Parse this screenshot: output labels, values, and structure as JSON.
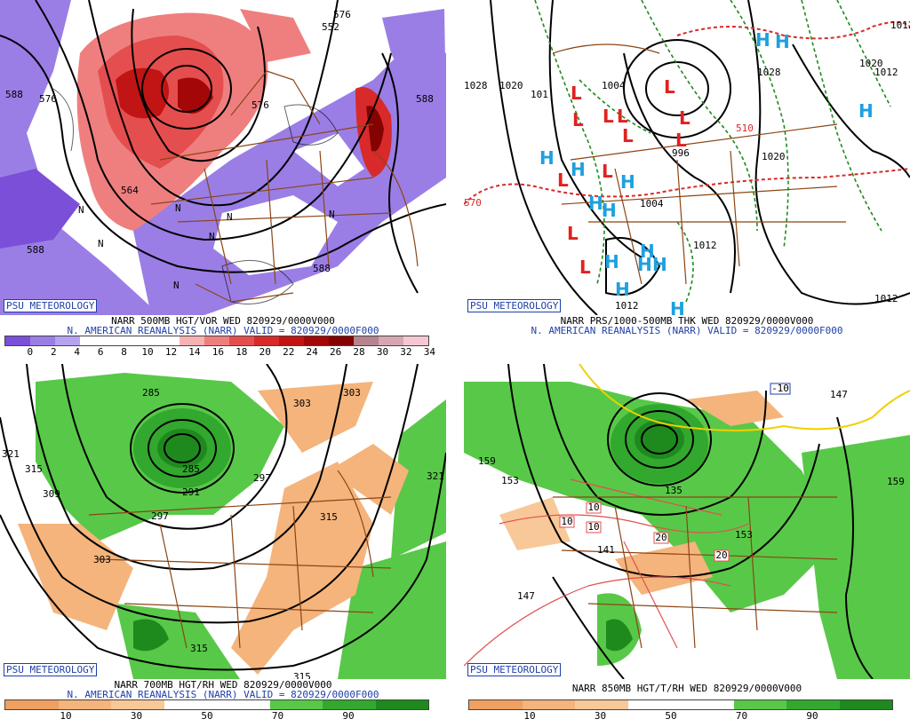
{
  "badge": "PSU METEOROLOGY",
  "subtitle": "N. AMERICAN REANALYSIS (NARR) VALID = 820929/0000F000",
  "panels": [
    {
      "title": "NARR 500MB HGT/VOR WED 820929/0000V000",
      "colorbar": {
        "colors": [
          "#7b4fd8",
          "#9a7ee6",
          "#b6a3ef",
          "#ffffff",
          "#ffffff",
          "#ffffff",
          "#ffffff",
          "#f6b2b2",
          "#ef7f7f",
          "#e54e4e",
          "#d82a2a",
          "#c11414",
          "#a30707",
          "#850202",
          "#b5848e",
          "#d6a6b3",
          "#f4c7d3"
        ],
        "ticks": [
          "0",
          "2",
          "4",
          "6",
          "8",
          "10",
          "12",
          "14",
          "16",
          "18",
          "20",
          "22",
          "24",
          "26",
          "28",
          "30",
          "32",
          "34"
        ]
      },
      "contour_labels": [
        "588",
        "576",
        "564",
        "552",
        "576",
        "588",
        "588",
        "588",
        "576"
      ],
      "markers": [
        "N",
        "N",
        "N",
        "N",
        "N",
        "N",
        "N"
      ]
    },
    {
      "title": "NARR PRS/1000-500MB THK WED 820929/0000V000",
      "contour_labels": [
        "1028",
        "1020",
        "101",
        "1004",
        "1028",
        "1020",
        "1020",
        "1012",
        "1004",
        "996",
        "1012",
        "1012",
        "570",
        "510",
        "1012",
        "1012"
      ],
      "markers": [
        "L",
        "L",
        "L",
        "L",
        "L",
        "L",
        "L",
        "L",
        "L",
        "L",
        "L",
        "L",
        "H",
        "H",
        "H",
        "H",
        "H",
        "H",
        "H",
        "H",
        "H",
        "H",
        "H",
        "H",
        "H",
        "H"
      ]
    },
    {
      "title": "NARR 700MB HGT/RH WED 820929/0000V000",
      "colorbar": {
        "colors": [
          "#f0a060",
          "#f4b47c",
          "#f8c898",
          "#ffffff",
          "#ffffff",
          "#58c848",
          "#32a82e",
          "#1e8a1e"
        ],
        "ticks": [
          "10",
          "30",
          "50",
          "70",
          "90"
        ]
      },
      "contour_labels": [
        "285",
        "303",
        "297",
        "321",
        "315",
        "309",
        "285",
        "291",
        "297",
        "303",
        "315",
        "321",
        "315",
        "315",
        "303"
      ]
    },
    {
      "title": "NARR 850MB HGT/T/RH WED 820929/0000V000",
      "colorbar": {
        "colors": [
          "#f0a060",
          "#f4b47c",
          "#f8c898",
          "#ffffff",
          "#ffffff",
          "#58c848",
          "#32a82e",
          "#1e8a1e"
        ],
        "ticks": [
          "10",
          "30",
          "50",
          "70",
          "90"
        ]
      },
      "contour_labels": [
        "159",
        "153",
        "135",
        "141",
        "147",
        "153",
        "147",
        "159"
      ],
      "temp_boxes": [
        "-10",
        "10",
        "10",
        "10",
        "20",
        "20"
      ]
    }
  ]
}
